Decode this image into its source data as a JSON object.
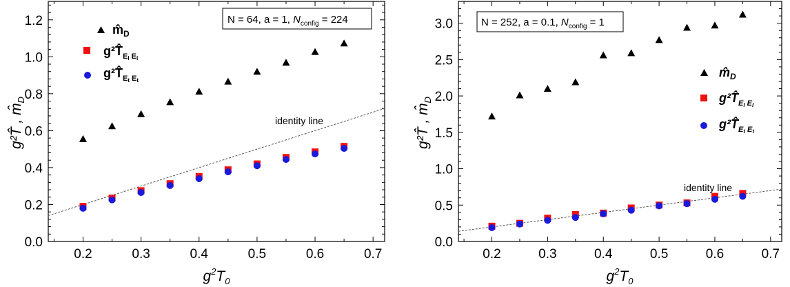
{
  "chart_data": [
    {
      "type": "scatter",
      "x": [
        0.2,
        0.25,
        0.3,
        0.35,
        0.4,
        0.45,
        0.5,
        0.55,
        0.6,
        0.65
      ],
      "xlim": [
        0.14,
        0.72
      ],
      "ylim": [
        0.0,
        1.3
      ],
      "xticks": [
        "0.2",
        "0.3",
        "0.4",
        "0.5",
        "0.6",
        "0.7"
      ],
      "yticks": [
        "0.0",
        "0.2",
        "0.4",
        "0.6",
        "0.8",
        "1.0",
        "1.2"
      ],
      "xlabel": "g²T₀",
      "ylabel": "g²T̂ , m̂_D",
      "info_box": "N = 64, a = 1, N_config = 224",
      "annotation": "identity line",
      "legend_position": "top-left",
      "series": [
        {
          "name": "m̂_D",
          "marker": "triangle",
          "color": "#000000",
          "values": [
            0.555,
            0.625,
            0.69,
            0.755,
            0.812,
            0.866,
            0.92,
            0.969,
            1.027,
            1.073
          ]
        },
        {
          "name": "g²T̂_{E_l E_l}",
          "marker": "square",
          "color": "#ee1111",
          "values": [
            0.19,
            0.235,
            0.275,
            0.313,
            0.352,
            0.388,
            0.42,
            0.455,
            0.485,
            0.515
          ]
        },
        {
          "name": "g²T̂_{E_t E_t}",
          "marker": "circle",
          "color": "#1a1adb",
          "values": [
            0.18,
            0.225,
            0.265,
            0.303,
            0.34,
            0.377,
            0.41,
            0.444,
            0.474,
            0.504
          ]
        }
      ]
    },
    {
      "type": "scatter",
      "x": [
        0.2,
        0.25,
        0.3,
        0.35,
        0.4,
        0.45,
        0.5,
        0.55,
        0.6,
        0.65
      ],
      "xlim": [
        0.14,
        0.72
      ],
      "ylim": [
        0.0,
        3.3
      ],
      "xticks": [
        "0.2",
        "0.3",
        "0.4",
        "0.5",
        "0.6",
        "0.7"
      ],
      "yticks": [
        "0.0",
        "0.5",
        "1.0",
        "1.5",
        "2.0",
        "2.5",
        "3.0"
      ],
      "xlabel": "g²T₀",
      "ylabel": "g²T̂ , m̂_D",
      "info_box": "N = 252, a = 0.1, N_config = 1",
      "annotation": "identity line",
      "legend_position": "right",
      "series": [
        {
          "name": "m̂_D",
          "marker": "triangle",
          "color": "#000000",
          "values": [
            1.72,
            2.01,
            2.1,
            2.19,
            2.56,
            2.59,
            2.77,
            2.94,
            2.97,
            3.12
          ]
        },
        {
          "name": "g²T̂_{E_l E_l}",
          "marker": "square",
          "color": "#ee1111",
          "values": [
            0.21,
            0.25,
            0.32,
            0.37,
            0.39,
            0.46,
            0.5,
            0.53,
            0.62,
            0.66
          ]
        },
        {
          "name": "g²T̂_{E_t E_t}",
          "marker": "circle",
          "color": "#1a1adb",
          "values": [
            0.19,
            0.24,
            0.29,
            0.33,
            0.38,
            0.43,
            0.49,
            0.52,
            0.58,
            0.62
          ]
        }
      ]
    }
  ],
  "panels": [
    {
      "info": {
        "pre": "N = 64, a = 1, ",
        "sym": "N",
        "sub": "config",
        "post": " = 224"
      },
      "legend": [
        {
          "label": "m̂",
          "sub": "D"
        },
        {
          "label": "g²T̂",
          "sub": "E"
        },
        {
          "label": "g²T̂",
          "sub": "E"
        }
      ],
      "annotation": "identity line",
      "xlabel": {
        "main": "g",
        "sup": "2",
        "after": "T",
        "sub": "0"
      },
      "ylabel": {
        "text": "g²T̂ , m̂",
        "sub": "D"
      }
    },
    {
      "info": {
        "pre": "N = 252, a = 0.1, ",
        "sym": "N",
        "sub": "config",
        "post": " = 1"
      },
      "legend": [
        {
          "label": "m̂",
          "sub": "D"
        },
        {
          "label": "g²T̂",
          "sub": "E"
        },
        {
          "label": "g²T̂",
          "sub": "E"
        }
      ],
      "annotation": "identity line",
      "xlabel": {
        "main": "g",
        "sup": "2",
        "after": "T",
        "sub": "0"
      },
      "ylabel": {
        "text": "g²T̂ , m̂",
        "sub": "D"
      }
    }
  ]
}
